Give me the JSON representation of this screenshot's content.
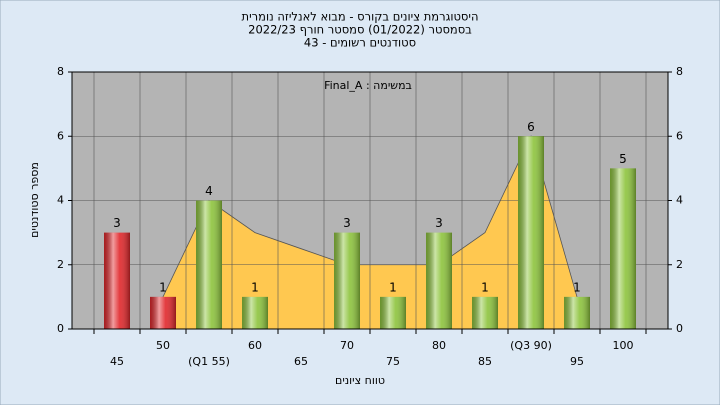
{
  "chart_data": {
    "type": "bar",
    "title": [
      "היסטוגרמת ציונים בקורס - מבוא לאנליזה נומרית",
      "בסמסטר  (01/2022)  סמסטר חורף 2022/23",
      "סטודנטים רשומים - 43"
    ],
    "annotation": "Final_A : במשימה",
    "x_label": "טווח ציונים",
    "y_label": "מספר סטודנטים",
    "categories": [
      "45",
      "50",
      "(Q1 55)",
      "60",
      "65",
      "70",
      "75",
      "80",
      "85",
      "(Q3 90)",
      "95",
      "100"
    ],
    "values": [
      3,
      1,
      4,
      1,
      null,
      3,
      1,
      3,
      1,
      6,
      1,
      5
    ],
    "colors": [
      "#e0262a",
      "#e0262a",
      "#8dc43c",
      "#8dc43c",
      "#8dc43c",
      "#8dc43c",
      "#8dc43c",
      "#8dc43c",
      "#8dc43c",
      "#8dc43c",
      "#8dc43c",
      "#8dc43c"
    ],
    "area_values": [
      null,
      1,
      4,
      3,
      2.5,
      2,
      2,
      2,
      3,
      6,
      1,
      null
    ],
    "area_color": "#ffc850",
    "ylim": [
      0,
      8
    ],
    "yticks": [
      0,
      2,
      4,
      6,
      8
    ],
    "y2lim": [
      0,
      8
    ],
    "y2ticks": [
      0,
      2,
      4,
      6,
      8
    ],
    "grid": true
  }
}
